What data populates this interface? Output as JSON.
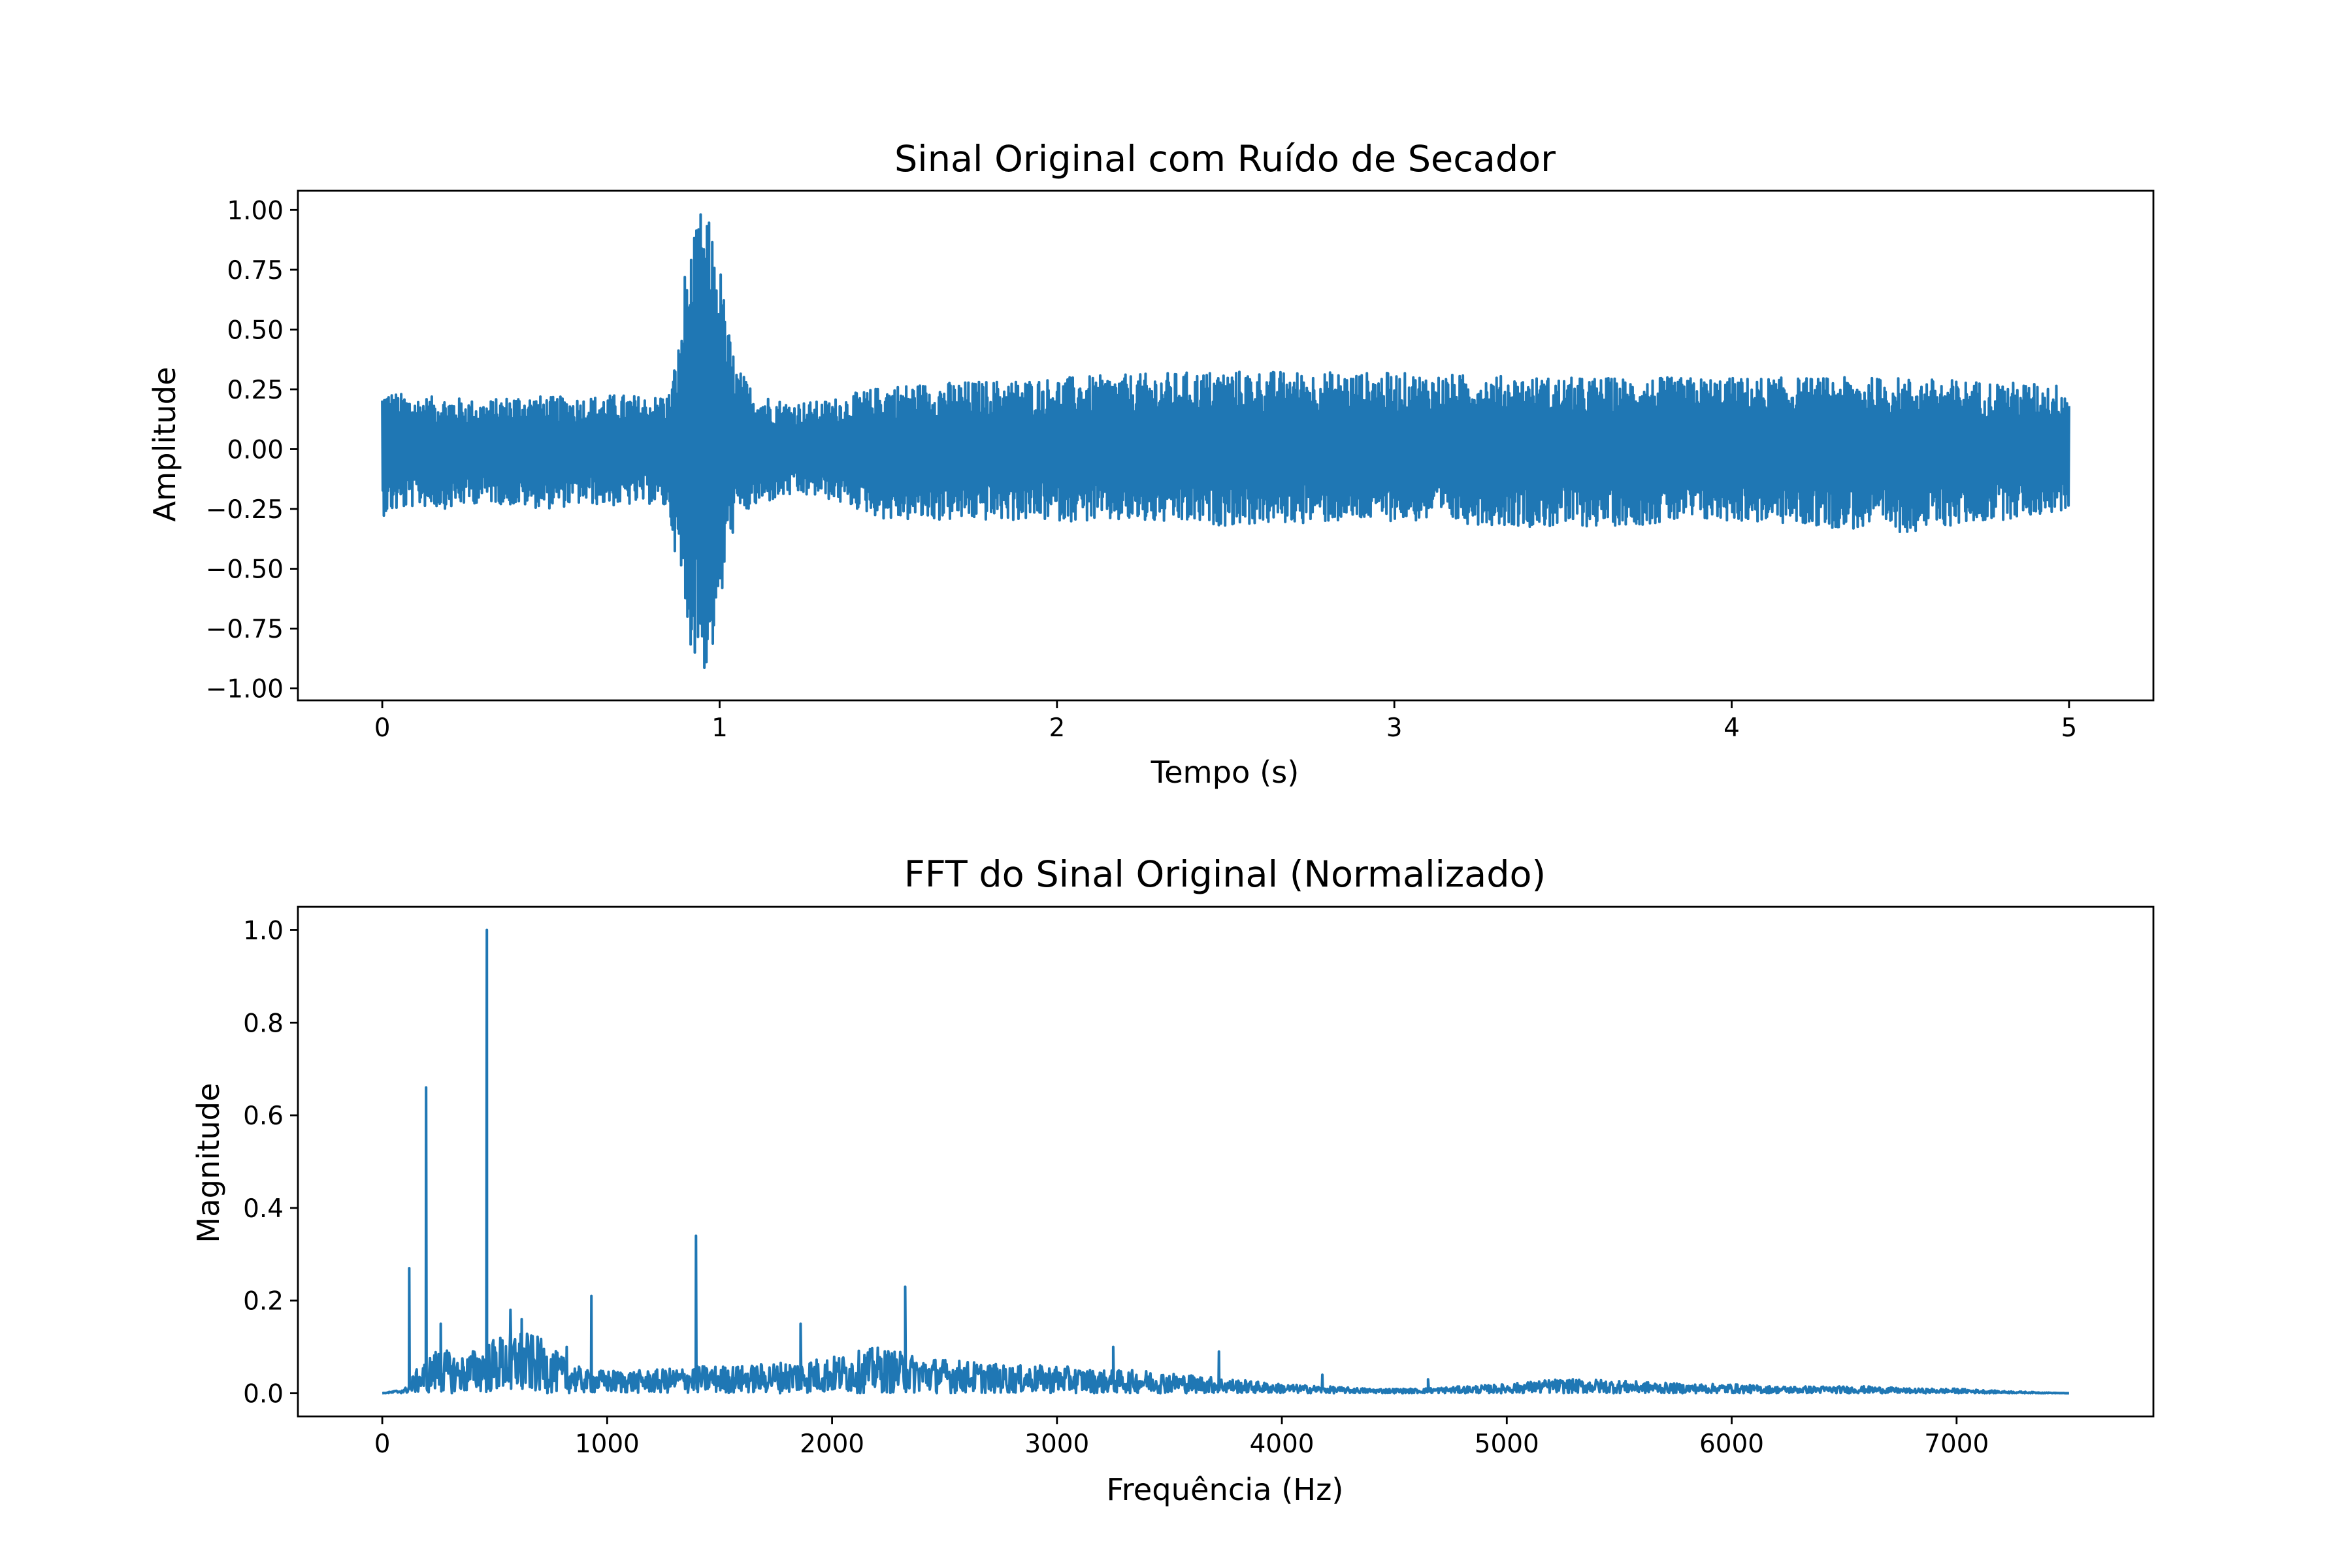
{
  "chart_data": [
    {
      "type": "line",
      "title": "Sinal Original com Ruído de Secador",
      "xlabel": "Tempo (s)",
      "ylabel": "Amplitude",
      "xlim": [
        -0.25,
        5.25
      ],
      "ylim": [
        -1.05,
        1.08
      ],
      "xticks": [
        0,
        1,
        2,
        3,
        4,
        5
      ],
      "xtick_labels": [
        "0",
        "1",
        "2",
        "3",
        "4",
        "5"
      ],
      "yticks": [
        -1.0,
        -0.75,
        -0.5,
        -0.25,
        0.0,
        0.25,
        0.5,
        0.75,
        1.0
      ],
      "ytick_labels": [
        "−1.00",
        "−0.75",
        "−0.50",
        "−0.25",
        "0.00",
        "0.25",
        "0.50",
        "0.75",
        "1.00"
      ],
      "grid": false,
      "color": "#1f77b4",
      "series": [
        {
          "x": [
            0.0,
            0.1,
            0.2,
            0.3,
            0.4,
            0.5,
            0.6,
            0.7,
            0.8,
            0.85,
            0.88,
            0.9,
            0.92,
            0.94,
            0.96,
            0.98,
            1.0,
            1.02,
            1.05,
            1.1,
            1.15,
            1.2,
            1.3,
            1.5,
            2.0,
            2.5,
            3.0,
            3.5,
            4.0,
            4.5,
            5.0
          ],
          "y_upper": [
            0.25,
            0.22,
            0.22,
            0.2,
            0.23,
            0.22,
            0.22,
            0.23,
            0.22,
            0.24,
            0.45,
            0.8,
            0.85,
            1.0,
            1.0,
            0.9,
            0.8,
            0.55,
            0.35,
            0.25,
            0.22,
            0.2,
            0.2,
            0.27,
            0.3,
            0.33,
            0.32,
            0.3,
            0.3,
            0.3,
            0.27
          ],
          "y_lower": [
            -0.28,
            -0.24,
            -0.25,
            -0.22,
            -0.24,
            -0.25,
            -0.23,
            -0.24,
            -0.23,
            -0.26,
            -0.55,
            -0.75,
            -0.85,
            -0.9,
            -0.95,
            -0.85,
            -0.75,
            -0.45,
            -0.3,
            -0.25,
            -0.22,
            -0.2,
            -0.2,
            -0.3,
            -0.3,
            -0.32,
            -0.3,
            -0.33,
            -0.3,
            -0.35,
            -0.26
          ]
        }
      ]
    },
    {
      "type": "line",
      "title": "FFT do Sinal Original (Normalizado)",
      "xlabel": "Frequência (Hz)",
      "ylabel": "Magnitude",
      "xlim": [
        -375,
        7875
      ],
      "ylim": [
        -0.05,
        1.05
      ],
      "xticks": [
        0,
        1000,
        2000,
        3000,
        4000,
        5000,
        6000,
        7000
      ],
      "xtick_labels": [
        "0",
        "1000",
        "2000",
        "3000",
        "4000",
        "5000",
        "6000",
        "7000"
      ],
      "yticks": [
        0.0,
        0.2,
        0.4,
        0.6,
        0.8,
        1.0
      ],
      "ytick_labels": [
        "0.0",
        "0.2",
        "0.4",
        "0.6",
        "0.8",
        "1.0"
      ],
      "grid": false,
      "color": "#1f77b4",
      "series": [
        {
          "x": [
            0,
            100,
            150,
            250,
            350,
            500,
            600,
            700,
            800,
            900,
            1000,
            1200,
            1400,
            1600,
            1800,
            2000,
            2200,
            2400,
            2600,
            2800,
            3000,
            3200,
            3400,
            3600,
            3800,
            4000,
            4200,
            4400,
            4600,
            4800,
            5000,
            5200,
            5400,
            5600,
            5800,
            6000,
            6200,
            6400,
            6600,
            6800,
            7000,
            7200,
            7500
          ],
          "envelope": [
            0.0,
            0.01,
            0.05,
            0.1,
            0.08,
            0.12,
            0.14,
            0.12,
            0.08,
            0.05,
            0.05,
            0.05,
            0.06,
            0.06,
            0.07,
            0.08,
            0.1,
            0.08,
            0.07,
            0.06,
            0.06,
            0.05,
            0.05,
            0.04,
            0.03,
            0.02,
            0.015,
            0.01,
            0.01,
            0.015,
            0.02,
            0.03,
            0.03,
            0.025,
            0.02,
            0.02,
            0.015,
            0.015,
            0.015,
            0.01,
            0.01,
            0.005,
            0.0
          ],
          "peaks": [
            {
              "x": 120,
              "y": 0.27
            },
            {
              "x": 195,
              "y": 0.66
            },
            {
              "x": 260,
              "y": 0.15
            },
            {
              "x": 465,
              "y": 1.0
            },
            {
              "x": 570,
              "y": 0.18
            },
            {
              "x": 620,
              "y": 0.16
            },
            {
              "x": 820,
              "y": 0.1
            },
            {
              "x": 930,
              "y": 0.21
            },
            {
              "x": 1395,
              "y": 0.34
            },
            {
              "x": 1860,
              "y": 0.15
            },
            {
              "x": 2325,
              "y": 0.23
            },
            {
              "x": 3250,
              "y": 0.1
            },
            {
              "x": 3720,
              "y": 0.09
            },
            {
              "x": 4180,
              "y": 0.04
            },
            {
              "x": 4650,
              "y": 0.03
            }
          ]
        }
      ]
    }
  ]
}
